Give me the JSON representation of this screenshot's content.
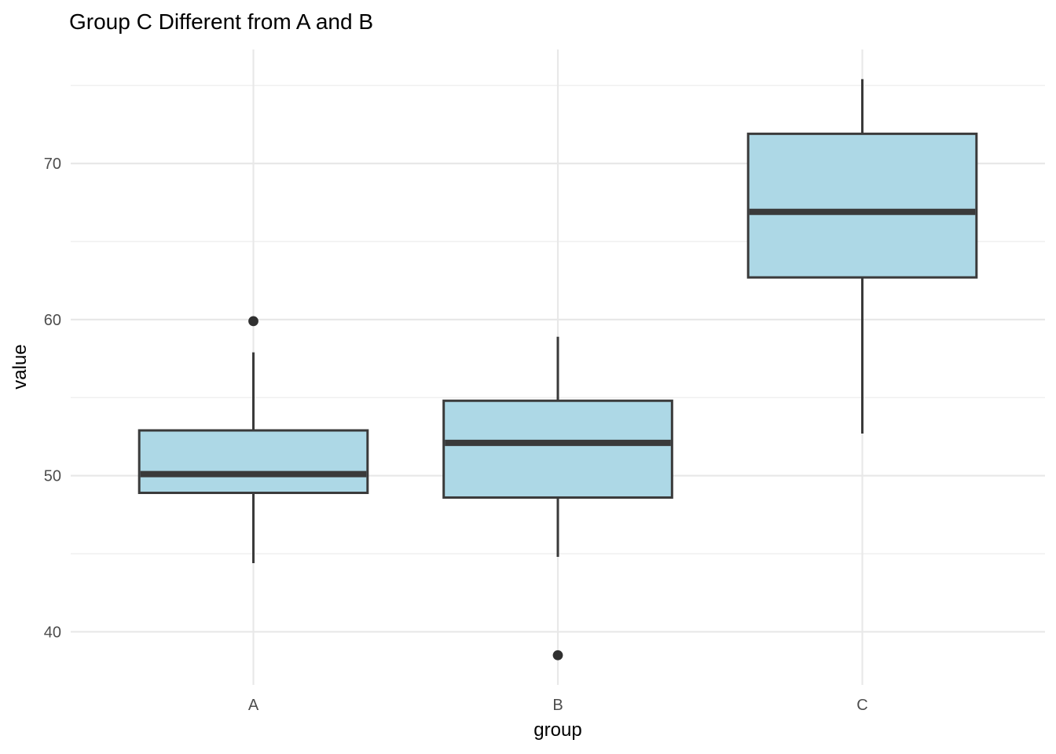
{
  "chart_data": {
    "type": "boxplot",
    "title": "Group C Different from A and B",
    "xlabel": "group",
    "ylabel": "value",
    "categories": [
      "A",
      "B",
      "C"
    ],
    "y_ticks": [
      40,
      50,
      60,
      70
    ],
    "y_minor_ticks": [
      45,
      55,
      65,
      75
    ],
    "ylim": [
      36.6,
      77.3
    ],
    "grid": true,
    "legend": "none",
    "series": [
      {
        "category": "A",
        "whisker_low": 44.4,
        "q1": 48.9,
        "median": 50.1,
        "q3": 52.9,
        "whisker_high": 57.9,
        "outliers": [
          59.9
        ]
      },
      {
        "category": "B",
        "whisker_low": 44.8,
        "q1": 48.6,
        "median": 52.1,
        "q3": 54.8,
        "whisker_high": 58.9,
        "outliers": [
          38.5
        ]
      },
      {
        "category": "C",
        "whisker_low": 52.7,
        "q1": 62.7,
        "median": 66.9,
        "q3": 71.9,
        "whisker_high": 75.4,
        "outliers": []
      }
    ],
    "colors": {
      "box_fill": "#ADD8E6",
      "box_border": "#3A3A3A",
      "outlier": "#303030",
      "gridline_major": "#E8E8E8",
      "gridline_minor": "#F0F0F0",
      "tick_label": "#4D4D4D",
      "title": "#000000",
      "background": "#FFFFFF"
    }
  }
}
